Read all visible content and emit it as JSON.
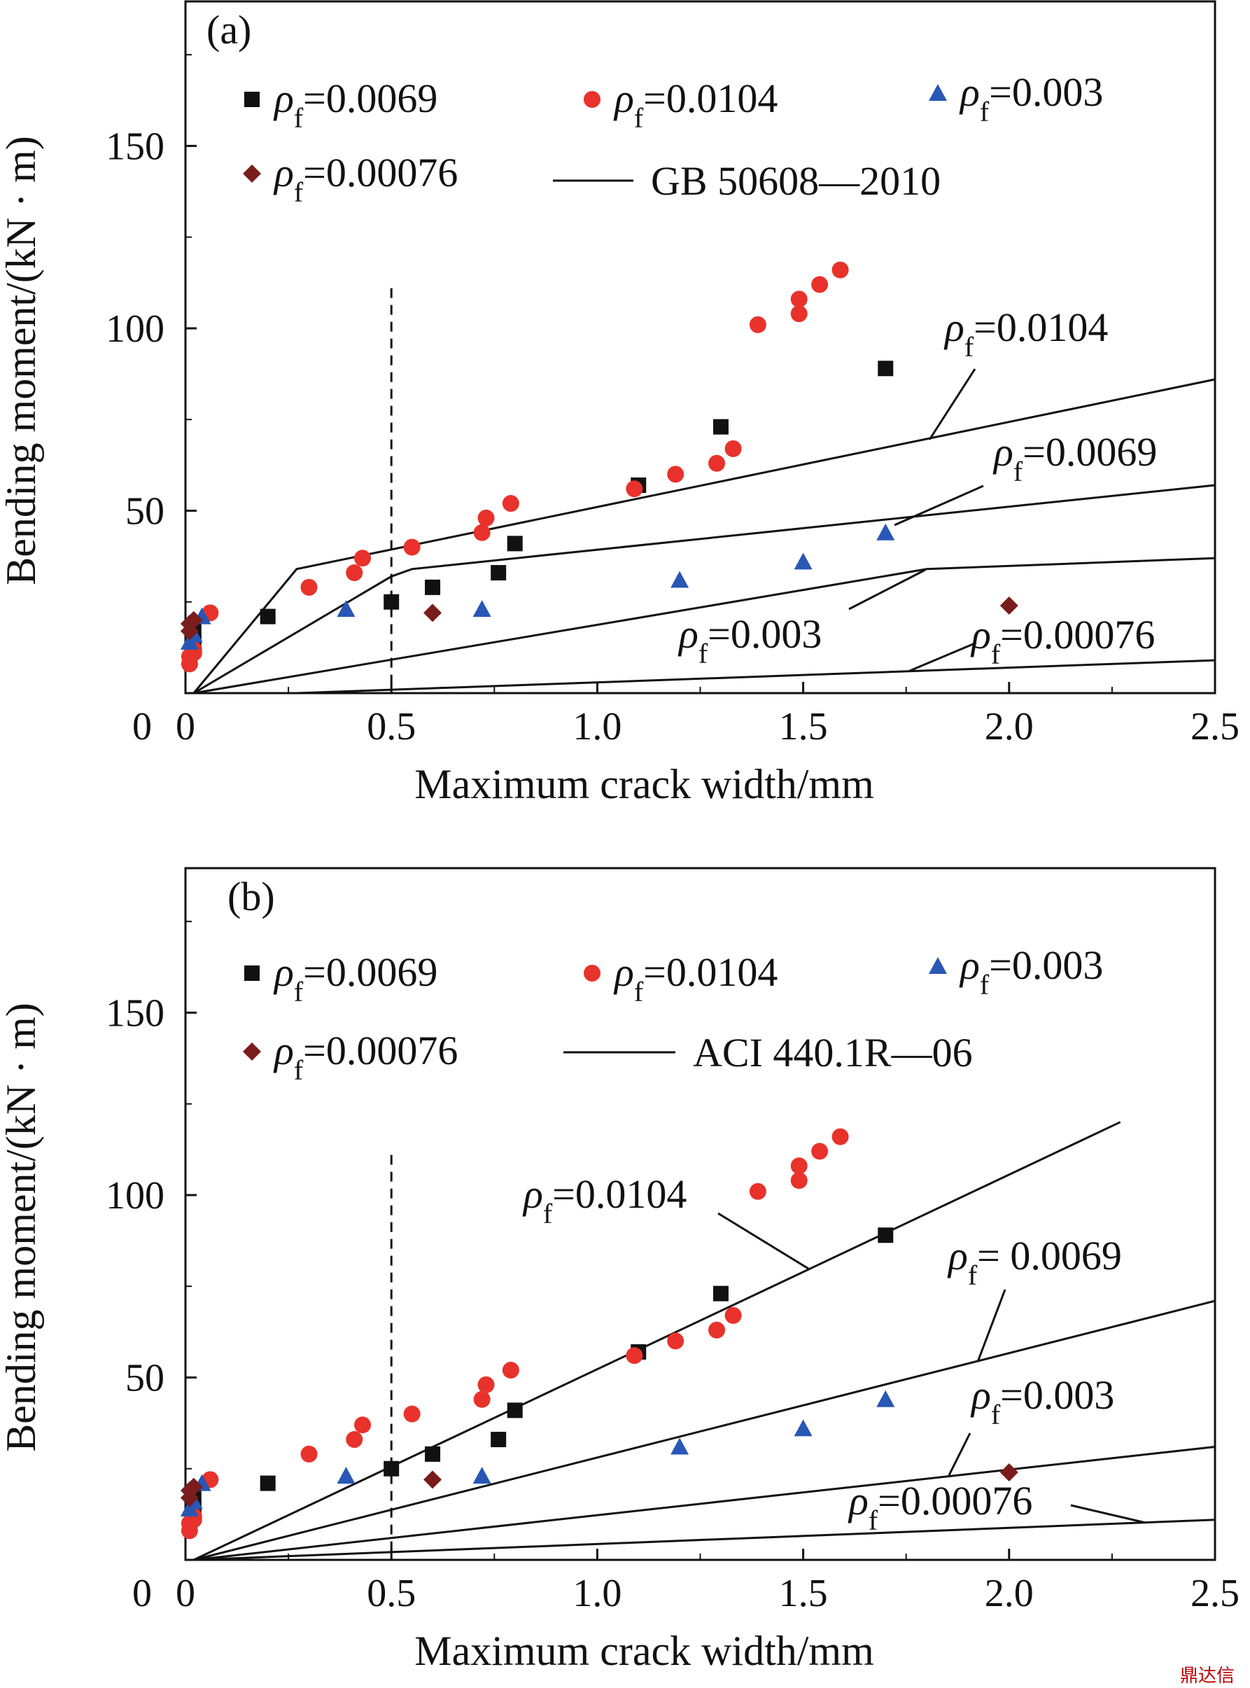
{
  "watermark": "鼎达信",
  "chart_data": [
    {
      "type": "scatter",
      "panel_label": "(a)",
      "xlabel": "Maximum crack width/mm",
      "ylabel": "Bending moment/(kN · m)",
      "xlim": [
        0,
        2.5
      ],
      "ylim": [
        0,
        190
      ],
      "x_ticks": [
        "0",
        "0.5",
        "1.0",
        "1.5",
        "2.0",
        "2.5"
      ],
      "y_ticks": [
        "50",
        "100",
        "150"
      ],
      "x_tick_values": [
        0,
        0.5,
        1.0,
        1.5,
        2.0,
        2.5
      ],
      "y_tick_values": [
        50,
        100,
        150
      ],
      "grid": false,
      "legend_position": "top",
      "reference_line": {
        "x": 0.5,
        "style": "dashed",
        "ymax": 111
      },
      "series": [
        {
          "label_rho": "ρ",
          "label_sub": "f",
          "label_val": "=0.0069",
          "marker": "square",
          "color": "#111111",
          "points": [
            [
              0.02,
              14
            ],
            [
              0.02,
              17
            ],
            [
              0.2,
              21
            ],
            [
              0.5,
              25
            ],
            [
              0.6,
              29
            ],
            [
              0.76,
              33
            ],
            [
              0.8,
              41
            ],
            [
              1.1,
              57
            ],
            [
              1.3,
              73
            ],
            [
              1.7,
              89
            ]
          ]
        },
        {
          "label_rho": "ρ",
          "label_sub": "f",
          "label_val": "=0.0104",
          "marker": "circle",
          "color": "#e8322b",
          "points": [
            [
              0.01,
              8
            ],
            [
              0.01,
              10
            ],
            [
              0.02,
              11
            ],
            [
              0.02,
              12
            ],
            [
              0.06,
              22
            ],
            [
              0.3,
              29
            ],
            [
              0.41,
              33
            ],
            [
              0.43,
              37
            ],
            [
              0.55,
              40
            ],
            [
              0.72,
              44
            ],
            [
              0.73,
              48
            ],
            [
              0.79,
              52
            ],
            [
              1.09,
              56
            ],
            [
              1.19,
              60
            ],
            [
              1.29,
              63
            ],
            [
              1.33,
              67
            ],
            [
              1.39,
              101
            ],
            [
              1.49,
              104
            ],
            [
              1.49,
              108
            ],
            [
              1.54,
              112
            ],
            [
              1.59,
              116
            ]
          ]
        },
        {
          "label_rho": "ρ",
          "label_sub": "f",
          "label_val": "=0.003",
          "marker": "triangle",
          "color": "#2857b5",
          "points": [
            [
              0.01,
              14
            ],
            [
              0.02,
              16
            ],
            [
              0.04,
              21
            ],
            [
              0.39,
              23
            ],
            [
              0.72,
              23
            ],
            [
              1.2,
              31
            ],
            [
              1.5,
              36
            ],
            [
              1.7,
              44
            ]
          ]
        },
        {
          "label_rho": "ρ",
          "label_sub": "f",
          "label_val": "=0.00076",
          "marker": "diamond",
          "color": "#7a1c1c",
          "points": [
            [
              0.01,
              17
            ],
            [
              0.01,
              19
            ],
            [
              0.02,
              20
            ],
            [
              0.6,
              22
            ],
            [
              2.0,
              24
            ]
          ]
        }
      ],
      "legend_line": {
        "label": "GB 50608—2010"
      },
      "curves": [
        {
          "name": "ρf=0.0104",
          "points": [
            [
              0.02,
              0
            ],
            [
              0.27,
              34
            ],
            [
              2.5,
              86
            ]
          ]
        },
        {
          "name": "ρf=0.0069",
          "points": [
            [
              0.02,
              0
            ],
            [
              0.5,
              32
            ],
            [
              0.55,
              34
            ],
            [
              2.5,
              57
            ]
          ]
        },
        {
          "name": "ρf=0.003",
          "points": [
            [
              0.02,
              0
            ],
            [
              1.8,
              34
            ],
            [
              2.5,
              37
            ]
          ]
        },
        {
          "name": "ρf=0.00076",
          "points": [
            [
              0.27,
              0
            ],
            [
              2.5,
              9
            ]
          ]
        }
      ],
      "curve_labels": [
        {
          "rho": "ρ",
          "sub": "f",
          "val": "=0.0104"
        },
        {
          "rho": "ρ",
          "sub": "f",
          "val": "=0.0069"
        },
        {
          "rho": "ρ",
          "sub": "f",
          "val": "=0.003"
        },
        {
          "rho": "ρ",
          "sub": "f",
          "val": "=0.00076"
        }
      ]
    },
    {
      "type": "scatter",
      "panel_label": "(b)",
      "xlabel": "Maximum crack width/mm",
      "ylabel": "Bending moment/(kN · m)",
      "xlim": [
        0,
        2.5
      ],
      "ylim": [
        0,
        190
      ],
      "x_ticks": [
        "0",
        "0.5",
        "1.0",
        "1.5",
        "2.0",
        "2.5"
      ],
      "y_ticks": [
        "50",
        "100",
        "150"
      ],
      "x_tick_values": [
        0,
        0.5,
        1.0,
        1.5,
        2.0,
        2.5
      ],
      "y_tick_values": [
        50,
        100,
        150
      ],
      "grid": false,
      "legend_position": "top",
      "reference_line": {
        "x": 0.5,
        "style": "dashed",
        "ymax": 111
      },
      "series": [
        {
          "label_rho": "ρ",
          "label_sub": "f",
          "label_val": "=0.0069",
          "marker": "square",
          "color": "#111111",
          "points": [
            [
              0.02,
              14
            ],
            [
              0.02,
              17
            ],
            [
              0.2,
              21
            ],
            [
              0.5,
              25
            ],
            [
              0.6,
              29
            ],
            [
              0.76,
              33
            ],
            [
              0.8,
              41
            ],
            [
              1.1,
              57
            ],
            [
              1.3,
              73
            ],
            [
              1.7,
              89
            ]
          ]
        },
        {
          "label_rho": "ρ",
          "label_sub": "f",
          "label_val": "=0.0104",
          "marker": "circle",
          "color": "#e8322b",
          "points": [
            [
              0.01,
              8
            ],
            [
              0.01,
              10
            ],
            [
              0.02,
              11
            ],
            [
              0.02,
              12
            ],
            [
              0.06,
              22
            ],
            [
              0.3,
              29
            ],
            [
              0.41,
              33
            ],
            [
              0.43,
              37
            ],
            [
              0.55,
              40
            ],
            [
              0.72,
              44
            ],
            [
              0.73,
              48
            ],
            [
              0.79,
              52
            ],
            [
              1.09,
              56
            ],
            [
              1.19,
              60
            ],
            [
              1.29,
              63
            ],
            [
              1.33,
              67
            ],
            [
              1.39,
              101
            ],
            [
              1.49,
              104
            ],
            [
              1.49,
              108
            ],
            [
              1.54,
              112
            ],
            [
              1.59,
              116
            ]
          ]
        },
        {
          "label_rho": "ρ",
          "label_sub": "f",
          "label_val": "=0.003",
          "marker": "triangle",
          "color": "#2857b5",
          "points": [
            [
              0.01,
              14
            ],
            [
              0.02,
              16
            ],
            [
              0.04,
              21
            ],
            [
              0.39,
              23
            ],
            [
              0.72,
              23
            ],
            [
              1.2,
              31
            ],
            [
              1.5,
              36
            ],
            [
              1.7,
              44
            ]
          ]
        },
        {
          "label_rho": "ρ",
          "label_sub": "f",
          "label_val": "=0.00076",
          "marker": "diamond",
          "color": "#7a1c1c",
          "points": [
            [
              0.01,
              17
            ],
            [
              0.01,
              19
            ],
            [
              0.02,
              20
            ],
            [
              0.6,
              22
            ],
            [
              2.0,
              24
            ]
          ]
        }
      ],
      "legend_line": {
        "label": "ACI 440.1R—06"
      },
      "curves": [
        {
          "name": "ρf=0.0104",
          "points": [
            [
              0.02,
              0
            ],
            [
              2.27,
              120
            ]
          ]
        },
        {
          "name": "ρf=0.0069",
          "points": [
            [
              0.02,
              0
            ],
            [
              2.5,
              71
            ]
          ]
        },
        {
          "name": "ρf=0.003",
          "points": [
            [
              0.02,
              0
            ],
            [
              2.5,
              31
            ]
          ]
        },
        {
          "name": "ρf=0.00076",
          "points": [
            [
              0.02,
              0
            ],
            [
              2.5,
              11
            ]
          ]
        }
      ],
      "curve_labels": [
        {
          "rho": "ρ",
          "sub": "f",
          "val": "=0.0104"
        },
        {
          "rho": "ρ",
          "sub": "f",
          "val": "= 0.0069"
        },
        {
          "rho": "ρ",
          "sub": "f",
          "val": "=0.003"
        },
        {
          "rho": "ρ",
          "sub": "f",
          "val": "=0.00076"
        }
      ]
    }
  ]
}
